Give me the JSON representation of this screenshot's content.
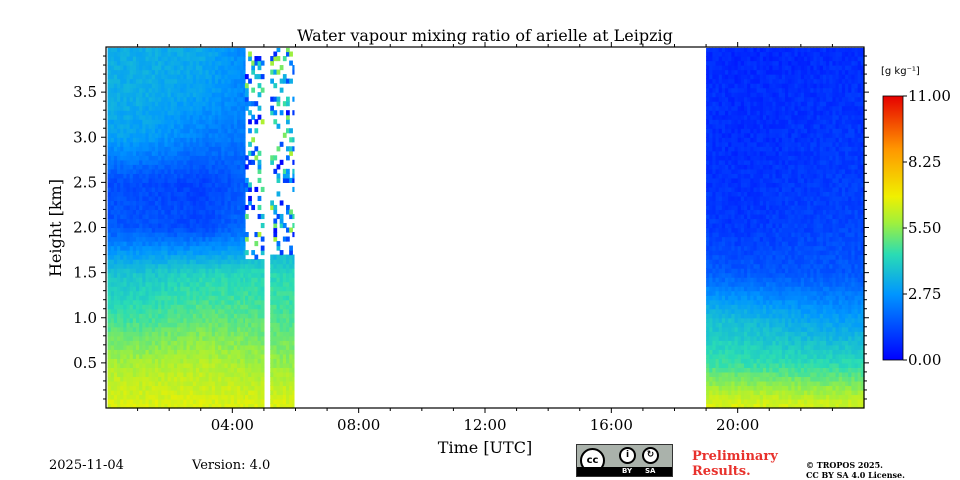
{
  "chart_data": {
    "type": "heatmap",
    "title": "Water vapour mixing ratio of arielle at Leipzig",
    "xlabel": "Time [UTC]",
    "ylabel": "Height [km]",
    "x_unit": "hours UTC",
    "xlim": [
      0,
      24
    ],
    "ylim": [
      0,
      4.0
    ],
    "x_ticks": [
      {
        "value": 4,
        "label": "04:00"
      },
      {
        "value": 8,
        "label": "08:00"
      },
      {
        "value": 12,
        "label": "12:00"
      },
      {
        "value": 16,
        "label": "16:00"
      },
      {
        "value": 20,
        "label": "20:00"
      }
    ],
    "y_ticks": [
      {
        "value": 0.5,
        "label": "0.5"
      },
      {
        "value": 1.0,
        "label": "1.0"
      },
      {
        "value": 1.5,
        "label": "1.5"
      },
      {
        "value": 2.0,
        "label": "2.0"
      },
      {
        "value": 2.5,
        "label": "2.5"
      },
      {
        "value": 3.0,
        "label": "3.0"
      },
      {
        "value": 3.5,
        "label": "3.5"
      }
    ],
    "colorbar": {
      "unit_label": "[g kg⁻¹]",
      "range": [
        0.0,
        11.0
      ],
      "ticks": [
        "0.00",
        "2.75",
        "5.50",
        "8.25",
        "11.00"
      ],
      "colormap": "jet"
    },
    "data_coverage": [
      {
        "start_h": 0.05,
        "end_h": 4.4,
        "top_km": 3.99
      },
      {
        "start_h": 4.4,
        "end_h": 5.0,
        "top_km": 3.99,
        "note": "noisy above 1.65 km"
      },
      {
        "start_h": 5.2,
        "end_h": 5.95,
        "top_km": 3.99,
        "note": "noisy above 1.7 km"
      },
      {
        "start_h": 19.0,
        "end_h": 24.0,
        "top_km": 3.99
      }
    ],
    "profiles": [
      {
        "time_h": 1,
        "heights_km": [
          0.05,
          0.5,
          1.0,
          1.5,
          2.0,
          2.5,
          3.0,
          3.5,
          3.95
        ],
        "values": [
          6.5,
          5.8,
          4.6,
          3.8,
          1.6,
          1.4,
          3.0,
          3.3,
          3.3
        ]
      },
      {
        "time_h": 3,
        "heights_km": [
          0.05,
          0.5,
          1.0,
          1.5,
          2.0,
          2.5,
          3.0,
          3.5,
          3.95
        ],
        "values": [
          6.5,
          6.0,
          5.0,
          4.2,
          1.3,
          1.2,
          2.3,
          3.0,
          3.2
        ]
      },
      {
        "time_h": 5.5,
        "heights_km": [
          0.05,
          0.5,
          1.0,
          1.5,
          2.0,
          2.5,
          3.0,
          3.5,
          3.95
        ],
        "values": [
          6.5,
          5.6,
          4.8,
          4.3,
          2.5,
          2.0,
          2.0,
          2.0,
          2.0
        ]
      },
      {
        "time_h": 20,
        "heights_km": [
          0.05,
          0.5,
          1.0,
          1.5,
          2.0,
          2.5,
          3.0,
          3.5,
          3.95
        ],
        "values": [
          6.5,
          4.5,
          3.6,
          1.6,
          1.0,
          0.9,
          0.8,
          0.8,
          0.7
        ]
      },
      {
        "time_h": 23,
        "heights_km": [
          0.05,
          0.5,
          1.0,
          1.5,
          2.0,
          2.5,
          3.0,
          3.5,
          3.95
        ],
        "values": [
          6.3,
          4.3,
          2.9,
          1.6,
          1.3,
          1.1,
          1.0,
          0.9,
          0.8
        ]
      }
    ]
  },
  "footer": {
    "date": "2025-11-04",
    "version": "Version: 4.0",
    "cc_label": "cc",
    "cc_by": "BY",
    "cc_sa": "SA",
    "preliminary_line1": "Preliminary",
    "preliminary_line2": "Results.",
    "copyright_line1": "© TROPOS 2025.",
    "copyright_line2": "CC BY SA 4.0 License."
  }
}
